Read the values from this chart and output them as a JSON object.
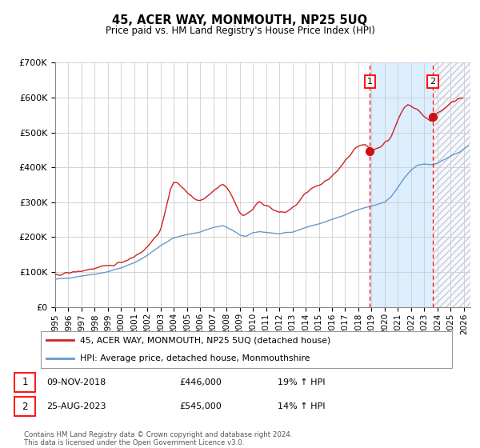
{
  "title": "45, ACER WAY, MONMOUTH, NP25 5UQ",
  "subtitle": "Price paid vs. HM Land Registry's House Price Index (HPI)",
  "ylim": [
    0,
    700000
  ],
  "yticks": [
    0,
    100000,
    200000,
    300000,
    400000,
    500000,
    600000,
    700000
  ],
  "ytick_labels": [
    "£0",
    "£100K",
    "£200K",
    "£300K",
    "£400K",
    "£500K",
    "£600K",
    "£700K"
  ],
  "xlim_start": 1995.0,
  "xlim_end": 2026.5,
  "xtick_years": [
    1995,
    1996,
    1997,
    1998,
    1999,
    2000,
    2001,
    2002,
    2003,
    2004,
    2005,
    2006,
    2007,
    2008,
    2009,
    2010,
    2011,
    2012,
    2013,
    2014,
    2015,
    2016,
    2017,
    2018,
    2019,
    2020,
    2021,
    2022,
    2023,
    2024,
    2025,
    2026
  ],
  "hpi_color": "#a8c8e8",
  "hpi_line_color": "#6699cc",
  "price_color": "#cc2222",
  "marker1_x": 2018.86,
  "marker1_y": 446000,
  "marker2_x": 2023.65,
  "marker2_y": 545000,
  "marker1_label": "09-NOV-2018",
  "marker1_price": "£446,000",
  "marker1_hpi": "19% ↑ HPI",
  "marker2_label": "25-AUG-2023",
  "marker2_price": "£545,000",
  "marker2_hpi": "14% ↑ HPI",
  "legend_line1": "45, ACER WAY, MONMOUTH, NP25 5UQ (detached house)",
  "legend_line2": "HPI: Average price, detached house, Monmouthshire",
  "footer": "Contains HM Land Registry data © Crown copyright and database right 2024.\nThis data is licensed under the Open Government Licence v3.0.",
  "shade_between_color": "#ddeeff",
  "hatch_color": "#cccccc",
  "grid_color": "#cccccc",
  "bg_after_color": "#e8eef8"
}
